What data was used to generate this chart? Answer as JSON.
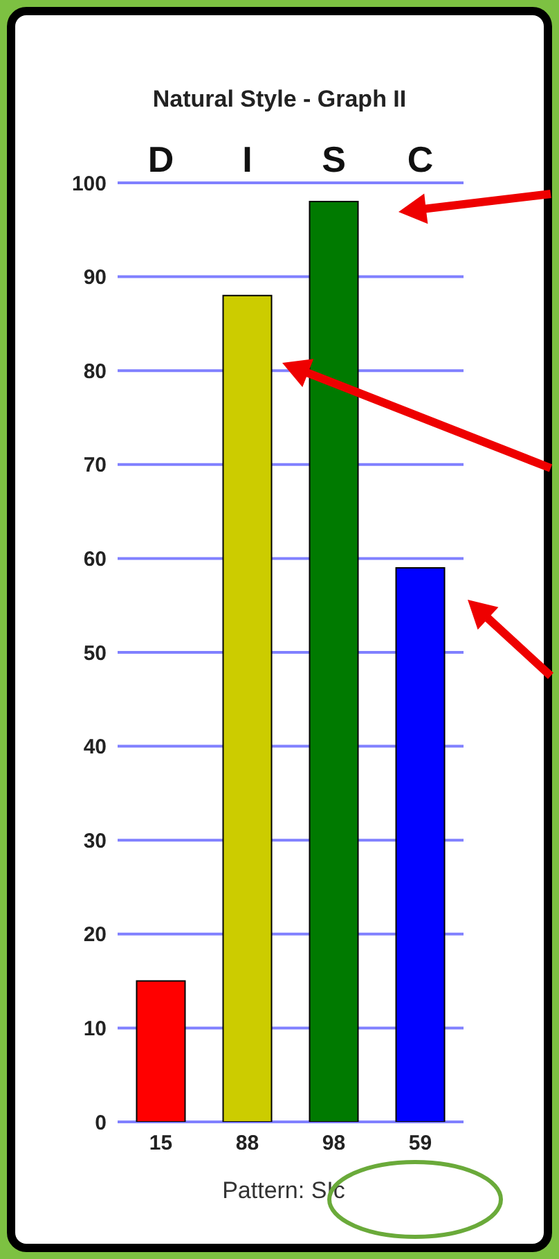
{
  "chart_data": {
    "type": "bar",
    "title": "Natural Style - Graph II",
    "categories": [
      "D",
      "I",
      "S",
      "C"
    ],
    "values": [
      15,
      88,
      98,
      59
    ],
    "colors": [
      "#ff0000",
      "#cccc00",
      "#007a00",
      "#0000ff"
    ],
    "ylim": [
      0,
      100
    ],
    "yticks": [
      0,
      10,
      20,
      30,
      40,
      50,
      60,
      70,
      80,
      90,
      100
    ],
    "grid": "y",
    "data_labels": true,
    "legend": false,
    "annotations": [
      "Pattern: SIc"
    ]
  }
}
